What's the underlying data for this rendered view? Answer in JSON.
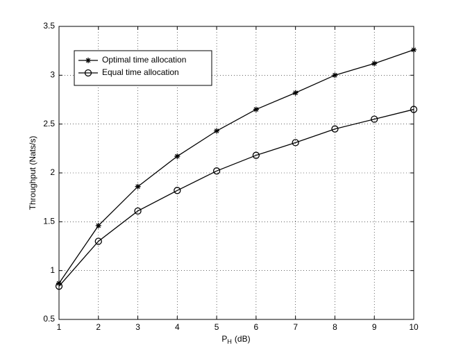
{
  "chart_data": {
    "type": "line",
    "xlabel": {
      "main": "P",
      "sub": "H",
      "unit": "(dB)"
    },
    "ylabel": "Throughput (Nats/s)",
    "x": [
      1,
      2,
      3,
      4,
      5,
      6,
      7,
      8,
      9,
      10
    ],
    "series": [
      {
        "name": "Optimal time allocation",
        "color": "#000000",
        "marker": "asterisk",
        "values": [
          0.87,
          1.46,
          1.86,
          2.17,
          2.43,
          2.65,
          2.82,
          3.0,
          3.12,
          3.26
        ]
      },
      {
        "name": "Equal time allocation",
        "color": "#000000",
        "marker": "circle",
        "values": [
          0.84,
          1.3,
          1.61,
          1.82,
          2.02,
          2.18,
          2.31,
          2.45,
          2.55,
          2.65
        ]
      }
    ],
    "xlim": [
      1,
      10
    ],
    "xticks": [
      1,
      2,
      3,
      4,
      5,
      6,
      7,
      8,
      9,
      10
    ],
    "ylim": [
      0.5,
      3.5
    ],
    "yticks": [
      0.5,
      1,
      1.5,
      2,
      2.5,
      3,
      3.5
    ],
    "grid": true,
    "legend": "upper-left"
  }
}
